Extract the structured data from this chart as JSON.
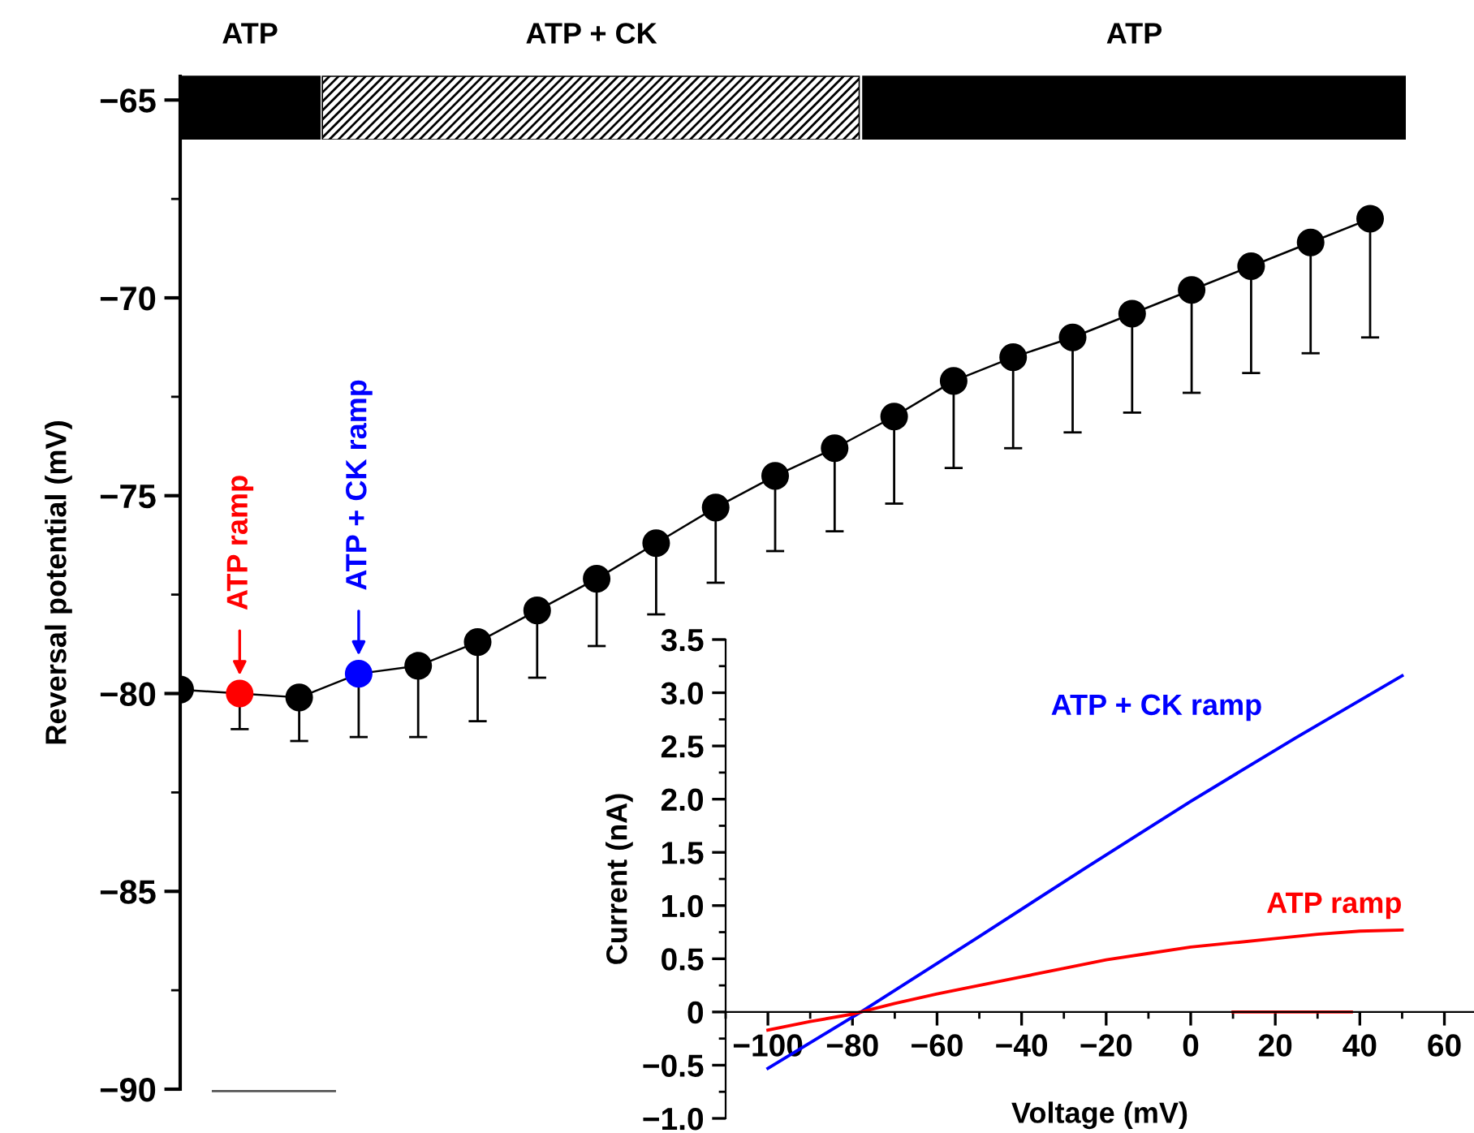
{
  "chart_data": [
    {
      "type": "line",
      "ylabel": "Reversal potential (mV)",
      "categories": [
        null,
        null,
        null,
        null,
        null,
        null,
        null,
        null,
        null,
        null,
        null,
        null,
        null,
        null,
        null,
        null,
        null,
        null,
        null,
        null,
        null
      ],
      "series": [
        {
          "color": "#000000",
          "colors": [
            "#000000",
            "#ff0000",
            "#000000",
            "#0000ff",
            "#000000",
            "#000000",
            "#000000",
            "#000000",
            "#000000",
            "#000000",
            "#000000",
            "#000000",
            "#000000",
            "#000000",
            "#000000",
            "#000000",
            "#000000",
            "#000000",
            "#000000",
            "#000000",
            "#000000"
          ],
          "values": [
            -79.9,
            -80.0,
            -80.1,
            -79.5,
            -79.3,
            -78.7,
            -77.9,
            -77.1,
            -76.2,
            -75.3,
            -74.5,
            -73.8,
            -73.0,
            -72.1,
            -71.5,
            -71.0,
            -70.4,
            -69.8,
            -69.2,
            -68.6,
            -68.0
          ],
          "errors": [
            null,
            [
              -80.9,
              -80.0
            ],
            [
              -81.2,
              -80.1
            ],
            [
              -81.1,
              -79.5
            ],
            [
              -81.1,
              -79.3
            ],
            [
              -80.7,
              -78.7
            ],
            [
              -79.6,
              -77.9
            ],
            [
              -78.8,
              -77.1
            ],
            [
              -78.0,
              -76.2
            ],
            [
              -77.2,
              -75.3
            ],
            [
              -76.4,
              -74.5
            ],
            [
              -75.9,
              -73.8
            ],
            [
              -75.2,
              -73.0
            ],
            [
              -74.3,
              -72.1
            ],
            [
              -73.8,
              -71.5
            ],
            [
              -73.4,
              -71.0
            ],
            [
              -72.9,
              -70.4
            ],
            [
              -72.4,
              -69.8
            ],
            [
              -71.9,
              -69.2
            ],
            [
              -71.4,
              -68.6
            ],
            [
              -71.0,
              -68.0
            ]
          ]
        }
      ],
      "ylim": [
        -90,
        -64.4
      ],
      "yticks": [
        {
          "value": -90,
          "label": "−90"
        },
        {
          "value": -85,
          "label": "−85"
        },
        {
          "value": -80,
          "label": "−80"
        },
        {
          "value": -75,
          "label": "−75"
        },
        {
          "value": -70,
          "label": "−70"
        },
        {
          "value": -65,
          "label": "−65"
        }
      ],
      "marker": "circle",
      "line_style": "solid",
      "grid": false,
      "legend": false,
      "tick_labels": "y",
      "annotations": [
        {
          "text": "ATP ramp",
          "y": -80.0
        },
        {
          "text": "ATP + CK ramp",
          "y": -79.5
        }
      ]
    },
    {
      "type": "other",
      "annotations": [
        "ATP",
        "ATP + CK",
        "ATP"
      ]
    },
    {
      "type": "line",
      "xlabel": "Voltage (mV)",
      "ylabel": "Current (nA)",
      "series": [
        {
          "name": "ATP + CK ramp",
          "color": "#0000ff",
          "x": [
            -100,
            -78,
            -50,
            -25,
            0,
            25,
            50
          ],
          "values": [
            -0.53,
            0,
            0.71,
            1.35,
            1.98,
            2.58,
            3.16
          ]
        },
        {
          "name": "ATP ramp",
          "color": "#ff0000",
          "x": [
            -100,
            -90,
            -80,
            -78,
            -70,
            -60,
            -50,
            -40,
            -30,
            -20,
            -10,
            0,
            10,
            20,
            30,
            40,
            50
          ],
          "values": [
            -0.17,
            -0.09,
            -0.02,
            0,
            0.08,
            0.17,
            0.25,
            0.33,
            0.41,
            0.49,
            0.55,
            0.61,
            0.65,
            0.69,
            0.73,
            0.76,
            0.77
          ]
        },
        {
          "color": "#ff0000",
          "x": [
            10,
            38
          ],
          "values": [
            0,
            0
          ]
        }
      ],
      "xlim": [
        -110,
        67
      ],
      "ylim": [
        -1.0,
        3.5
      ],
      "xticks": [
        {
          "value": -100,
          "label": "−100"
        },
        {
          "value": -80,
          "label": "−80"
        },
        {
          "value": -60,
          "label": "−60"
        },
        {
          "value": -40,
          "label": "−40"
        },
        {
          "value": -20,
          "label": "−20"
        },
        0,
        20,
        40,
        60
      ],
      "yticks": [
        {
          "value": -1.0,
          "label": "−1.0"
        },
        {
          "value": -0.5,
          "label": "−0.5"
        },
        0,
        0.5,
        {
          "value": 1.0,
          "label": "1.0"
        },
        1.5,
        {
          "value": 2.0,
          "label": "2.0"
        },
        2.5,
        {
          "value": 3.0,
          "label": "3.0"
        },
        3.5
      ],
      "marker": "none",
      "line_style": "solid",
      "grid": false,
      "legend": false
    }
  ]
}
